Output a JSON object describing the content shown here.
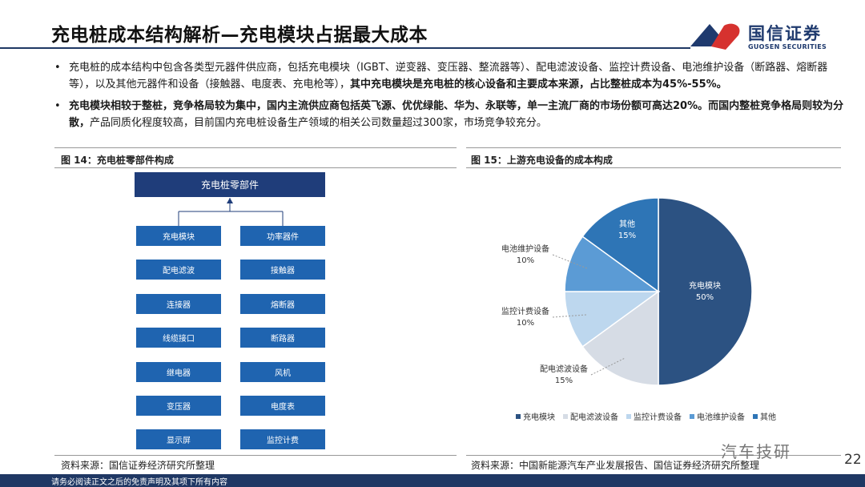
{
  "header": {
    "title": "充电桩成本结构解析—充电模块占据最大成本",
    "logo_cn": "国信证券",
    "logo_en": "GUOSEN SECURITIES"
  },
  "bullets": [
    {
      "text_normal": "充电桩的成本结构中包含各类型元器件供应商，包括充电模块（IGBT、逆变器、变压器、整流器等）、配电滤波设备、监控计费设备、电池维护设备（断路器、熔断器等），以及其他元器件和设备（接触器、电度表、充电枪等），",
      "text_bold": "其中充电模块是充电桩的核心设备和主要成本来源，占比整桩成本为45%-55%。"
    },
    {
      "text_bold": "充电模块相较于整桩，竞争格局较为集中，国内主流供应商包括英飞源、优优绿能、华为、永联等，单一主流厂商的市场份额可高达20%。而国内整桩竞争格局则较为分散，",
      "text_normal": "产品同质化程度较高，目前国内充电桩设备生产领域的相关公司数量超过300家，市场竞争较充分。"
    }
  ],
  "figure14": {
    "title": "图 14：充电桩零部件构成",
    "root": "充电桩零部件",
    "left_items": [
      "充电模块",
      "配电滤波",
      "连接器",
      "线缆接口",
      "继电器",
      "变压器",
      "显示屏"
    ],
    "right_items": [
      "功率器件",
      "接触器",
      "熔断器",
      "断路器",
      "风机",
      "电度表",
      "监控计费"
    ],
    "source": "资料来源：国信证券经济研究所整理"
  },
  "figure15": {
    "title": "图 15：上游充电设备的成本构成",
    "source": "资料来源：中国新能源汽车产业发展报告、国信证券经济研究所整理"
  },
  "chart_data": {
    "type": "pie",
    "slices": [
      {
        "label": "充电模块",
        "value": 50,
        "value_text": "50%",
        "color": "#2c5282"
      },
      {
        "label": "配电滤波设备",
        "value": 15,
        "value_text": "15%",
        "color": "#d6dce5"
      },
      {
        "label": "监控计费设备",
        "value": 10,
        "value_text": "10%",
        "color": "#bdd7ee"
      },
      {
        "label": "电池维护设备",
        "value": 10,
        "value_text": "10%",
        "color": "#5b9bd5"
      },
      {
        "label": "其他",
        "value": 15,
        "value_text": "15%",
        "color": "#2e75b6"
      }
    ],
    "legend": [
      "充电模块",
      "配电滤波设备",
      "监控计费设备",
      "电池维护设备",
      "其他"
    ],
    "legend_position": "bottom"
  },
  "footer": {
    "disclaimer": "请务必阅读正文之后的免责声明及其项下所有内容",
    "page_number": "22",
    "watermark": "汽车技研"
  }
}
